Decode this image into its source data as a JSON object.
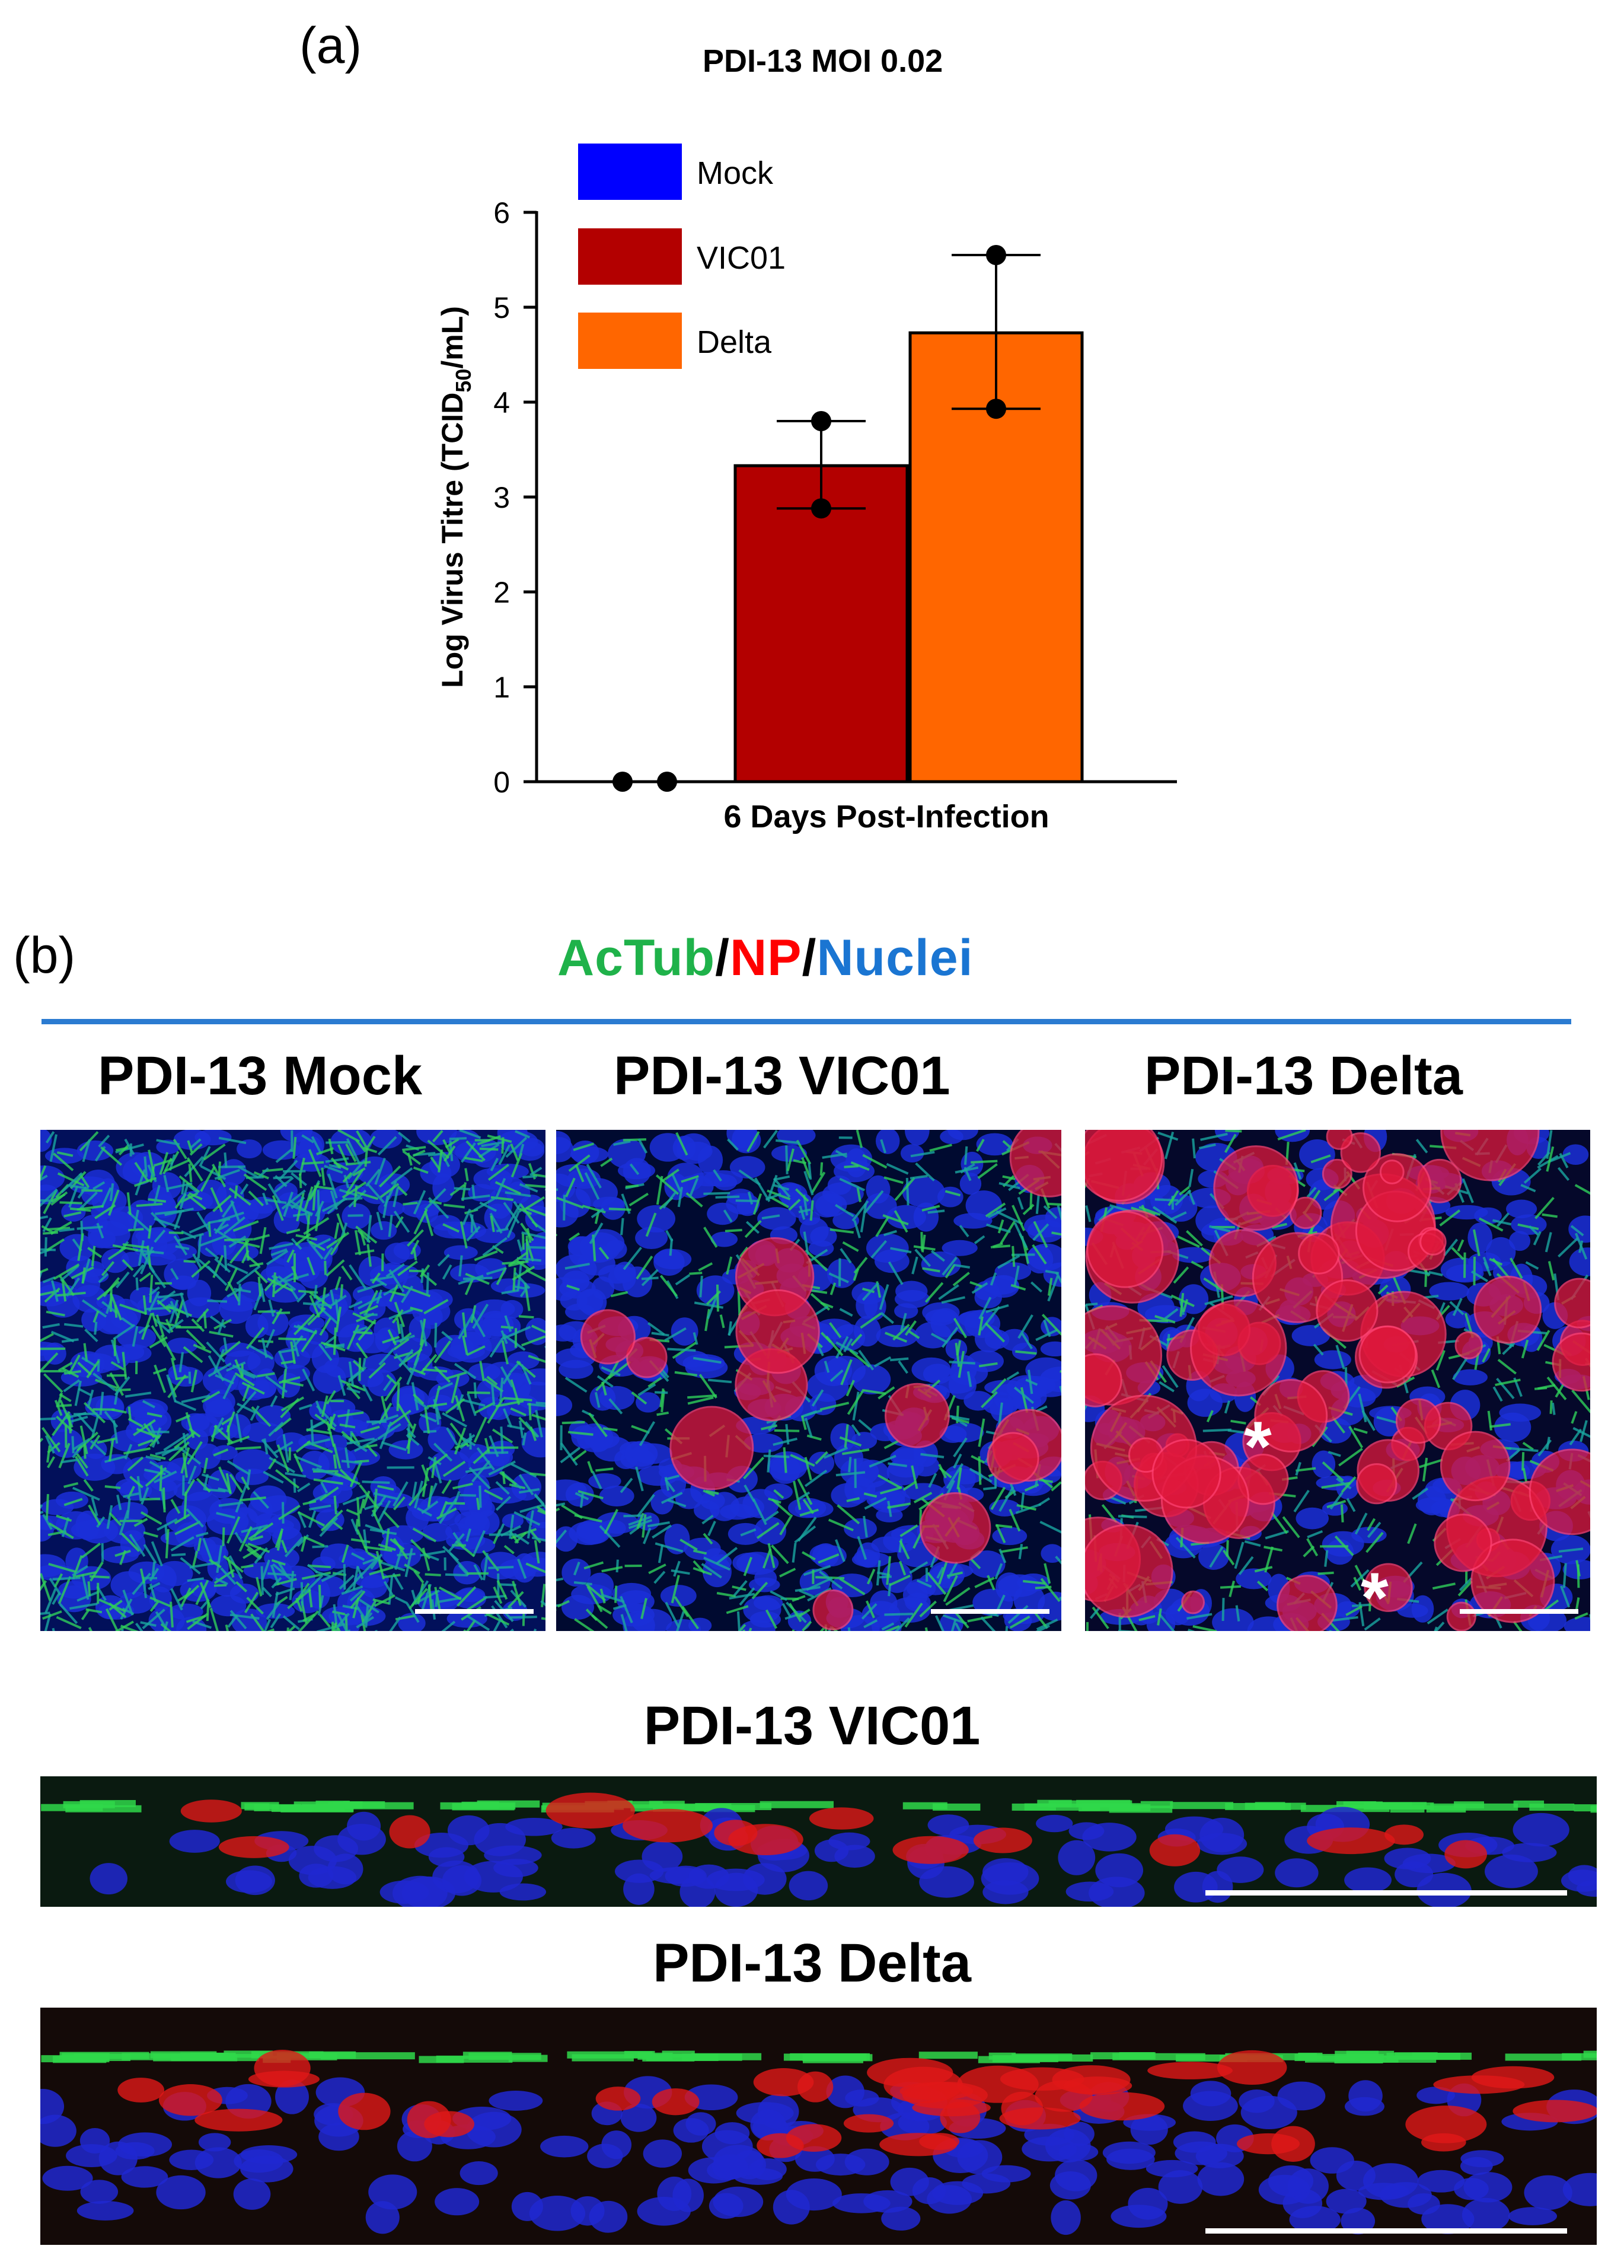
{
  "panel_a": {
    "label": "(a)",
    "chart_data": {
      "type": "bar",
      "title": "PDI-13 MOI 0.02",
      "xlabel": "6 Days Post-Infection",
      "ylabel": "Log Virus Titre (TCID50/mL)",
      "ylabel_main": "Log Virus Titre (TCID",
      "ylabel_sub": "50",
      "ylabel_end": "/mL)",
      "ylim": [
        0,
        6
      ],
      "yticks": [
        "0",
        "1",
        "2",
        "3",
        "4",
        "5",
        "6"
      ],
      "legend_position": "top-left",
      "series": [
        {
          "name": "Mock",
          "color": "#0000ff",
          "value": 0,
          "points": [
            0,
            0
          ],
          "error": [
            0,
            0
          ]
        },
        {
          "name": "VIC01",
          "color": "#b30000",
          "value": 3.33,
          "points": [
            3.8,
            2.88
          ],
          "error": [
            2.88,
            3.8
          ]
        },
        {
          "name": "Delta",
          "color": "#ff6600",
          "value": 4.73,
          "points": [
            5.55,
            3.93
          ],
          "error": [
            3.93,
            5.55
          ]
        }
      ]
    }
  },
  "panel_b": {
    "label": "(b)",
    "stain": {
      "part1": "AcTub",
      "sep1": "/",
      "part2": "NP",
      "sep2": "/",
      "part3": "Nuclei"
    },
    "stain_colors": {
      "actub": "#1fb24a",
      "np": "#ff0000",
      "nuclei": "#1a75d2",
      "rule": "#2b7bd1"
    },
    "images": [
      {
        "title": "PDI-13 Mock"
      },
      {
        "title": "PDI-13 VIC01"
      },
      {
        "title": "PDI-13 Delta",
        "markers": [
          "*",
          "*"
        ]
      }
    ],
    "cross_sections": [
      {
        "title": "PDI-13 VIC01"
      },
      {
        "title": "PDI-13 Delta"
      }
    ]
  }
}
